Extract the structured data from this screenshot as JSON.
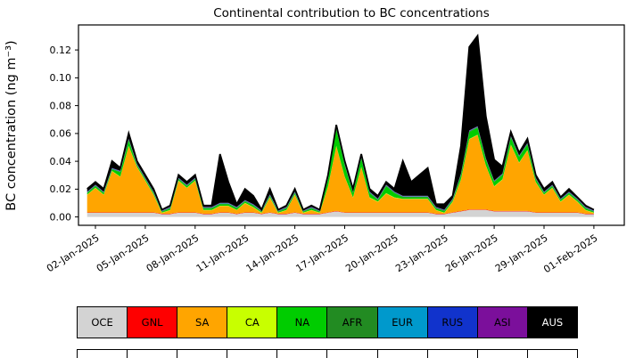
{
  "chart_data": {
    "type": "area",
    "stacked": true,
    "title": "Continental contribution to BC concentrations",
    "xlabel": "",
    "ylabel": "BC concentration (ng m⁻³)",
    "grid": false,
    "legend_position": "bottom",
    "xlim": [
      0.98,
      33.83
    ],
    "ylim": [
      -0.006,
      0.138
    ],
    "y_ticks": [
      0.0,
      0.02,
      0.04,
      0.06,
      0.08,
      0.1,
      0.12
    ],
    "y_tick_labels": [
      "0.00",
      "0.02",
      "0.04",
      "0.06",
      "0.08",
      "0.10",
      "0.12"
    ],
    "x_tick_positions": [
      2,
      5,
      8,
      11,
      14,
      17,
      20,
      23,
      26,
      29,
      32
    ],
    "x_tick_labels": [
      "02-Jan-2025",
      "05-Jan-2025",
      "08-Jan-2025",
      "11-Jan-2025",
      "14-Jan-2025",
      "17-Jan-2025",
      "20-Jan-2025",
      "23-Jan-2025",
      "26-Jan-2025",
      "29-Jan-2025",
      "01-Feb-2025"
    ],
    "x_days": [
      1.5,
      2,
      2.5,
      3,
      3.5,
      4,
      4.5,
      5,
      5.5,
      6,
      6.5,
      7,
      7.5,
      8,
      8.5,
      9,
      9.5,
      10,
      10.5,
      11,
      11.5,
      12,
      12.5,
      13,
      13.5,
      14,
      14.5,
      15,
      15.5,
      16,
      16.5,
      17,
      17.5,
      18,
      18.5,
      19,
      19.5,
      20,
      20.5,
      21,
      21.5,
      22,
      22.5,
      23,
      23.5,
      24,
      24.5,
      25,
      25.5,
      26,
      26.5,
      27,
      27.5,
      28,
      28.5,
      29,
      29.5,
      30,
      30.5,
      31,
      31.5,
      32
    ],
    "series": [
      {
        "name": "OCE",
        "color": "#d3d3d3",
        "values": [
          0.003,
          0.003,
          0.003,
          0.003,
          0.003,
          0.003,
          0.003,
          0.003,
          0.003,
          0.002,
          0.002,
          0.003,
          0.003,
          0.003,
          0.002,
          0.002,
          0.003,
          0.003,
          0.002,
          0.003,
          0.003,
          0.002,
          0.003,
          0.002,
          0.002,
          0.003,
          0.002,
          0.002,
          0.002,
          0.003,
          0.004,
          0.003,
          0.003,
          0.003,
          0.003,
          0.003,
          0.003,
          0.003,
          0.003,
          0.003,
          0.003,
          0.003,
          0.002,
          0.002,
          0.003,
          0.004,
          0.005,
          0.005,
          0.005,
          0.004,
          0.004,
          0.004,
          0.004,
          0.004,
          0.003,
          0.003,
          0.003,
          0.003,
          0.003,
          0.003,
          0.002,
          0.002
        ]
      },
      {
        "name": "GNL",
        "color": "#fe0000",
        "constant": 0.0003
      },
      {
        "name": "SA",
        "color": "#ffa500",
        "values": [
          0.0125,
          0.0175,
          0.0125,
          0.0295,
          0.0255,
          0.0475,
          0.0325,
          0.0225,
          0.0125,
          0.0005,
          0.0025,
          0.0225,
          0.0175,
          0.0225,
          0.0025,
          0.0025,
          0.0045,
          0.0045,
          0.0025,
          0.0065,
          0.0035,
          0.0005,
          0.0105,
          0.0005,
          0.0025,
          0.0125,
          0.0005,
          0.0025,
          0.0005,
          0.0185,
          0.0465,
          0.0255,
          0.0105,
          0.0325,
          0.0105,
          0.0075,
          0.0135,
          0.0105,
          0.0095,
          0.0095,
          0.0095,
          0.0095,
          0.0025,
          0.0005,
          0.0075,
          0.0225,
          0.0505,
          0.0535,
          0.0315,
          0.0175,
          0.0225,
          0.0475,
          0.0345,
          0.0435,
          0.0215,
          0.0125,
          0.0175,
          0.0075,
          0.0125,
          0.0075,
          0.0025,
          0.0005
        ]
      },
      {
        "name": "CA",
        "color": "#c8ff00",
        "constant": 0.0003
      },
      {
        "name": "NA",
        "color": "#00cc00",
        "values": [
          0.001,
          0.001,
          0.001,
          0.001,
          0.003,
          0.004,
          0.001,
          0.001,
          0.001,
          0.0005,
          0.001,
          0.001,
          0.001,
          0.001,
          0.001,
          0.001,
          0.001,
          0.001,
          0.001,
          0.001,
          0.001,
          0.0005,
          0.001,
          0.0005,
          0.001,
          0.001,
          0.0005,
          0.001,
          0.0005,
          0.005,
          0.012,
          0.008,
          0.003,
          0.006,
          0.003,
          0.001,
          0.005,
          0.003,
          0.001,
          0.001,
          0.001,
          0.001,
          0.001,
          0.001,
          0.001,
          0.003,
          0.005,
          0.005,
          0.004,
          0.003,
          0.003,
          0.005,
          0.004,
          0.004,
          0.002,
          0.001,
          0.001,
          0.001,
          0.001,
          0.001,
          0.001,
          0.0005
        ]
      },
      {
        "name": "AFR",
        "color": "#228b22",
        "constant": 0.0005
      },
      {
        "name": "EUR",
        "color": "#0099cc",
        "constant": 0.0002
      },
      {
        "name": "RUS",
        "color": "#1133cc",
        "constant": 0.0002
      },
      {
        "name": "ASI",
        "color": "#7b0f9b",
        "constant": 0.0002
      },
      {
        "name": "AUS",
        "color": "#000000",
        "label_color": "#ffffff",
        "values": [
          0.002,
          0.002,
          0.002,
          0.005,
          0.002,
          0.004,
          0.002,
          0.002,
          0.002,
          0.0005,
          0.001,
          0.002,
          0.002,
          0.002,
          0.001,
          0.001,
          0.035,
          0.015,
          0.002,
          0.008,
          0.006,
          0.0005,
          0.004,
          0.0005,
          0.001,
          0.002,
          0.0005,
          0.001,
          0.0005,
          0.002,
          0.002,
          0.002,
          0.002,
          0.002,
          0.002,
          0.002,
          0.002,
          0.002,
          0.025,
          0.01,
          0.015,
          0.02,
          0.002,
          0.004,
          0.002,
          0.02,
          0.06,
          0.065,
          0.03,
          0.015,
          0.005,
          0.003,
          0.002,
          0.003,
          0.002,
          0.002,
          0.002,
          0.001,
          0.002,
          0.001,
          0.001,
          0.0005
        ]
      }
    ],
    "legend_labels": [
      "OCE",
      "GNL",
      "SA",
      "CA",
      "NA",
      "AFR",
      "EUR",
      "RUS",
      "ASI",
      "AUS"
    ]
  }
}
